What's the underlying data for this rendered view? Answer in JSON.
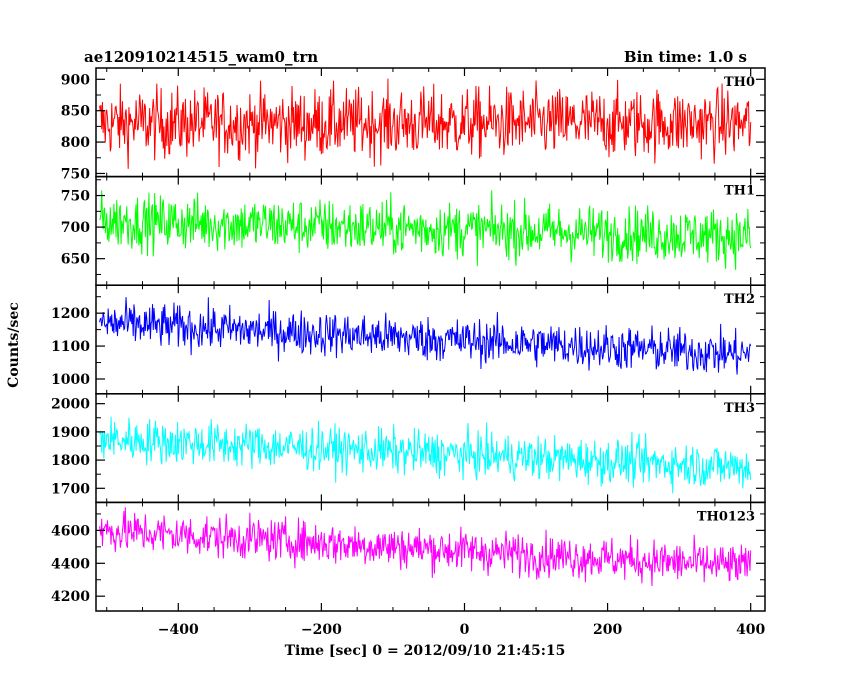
{
  "header": {
    "title": "ae120910214515_wam0_trn",
    "bin_time": "Bin time: 1.0 s"
  },
  "chart_data": {
    "type": "line",
    "xlabel": "Time [sec] 0 = 2012/09/10 21:45:15",
    "ylabel": "Counts/sec",
    "xlim": [
      -515,
      420
    ],
    "x_ticks": [
      -400,
      -200,
      0,
      200,
      400
    ],
    "x_tick_labels": [
      "−400",
      "−200",
      "0",
      "200",
      "400"
    ],
    "series_x_range": [
      -510,
      400
    ],
    "panels": [
      {
        "name": "TH0",
        "color": "#ff0000",
        "ylim": [
          745,
          918
        ],
        "y_ticks": [
          750,
          800,
          850,
          900
        ],
        "y_tick_labels": [
          "750",
          "800",
          "850",
          "900"
        ],
        "trend_start": 830,
        "trend_end": 830,
        "noise": 28
      },
      {
        "name": "TH1",
        "color": "#00ff00",
        "ylim": [
          608,
          780
        ],
        "y_ticks": [
          650,
          700,
          750
        ],
        "y_tick_labels": [
          "650",
          "700",
          "750"
        ],
        "trend_start": 710,
        "trend_end": 685,
        "noise": 22
      },
      {
        "name": "TH2",
        "color": "#0000ff",
        "ylim": [
          955,
          1285
        ],
        "y_ticks": [
          1000,
          1100,
          1200
        ],
        "y_tick_labels": [
          "1000",
          "1100",
          "1200"
        ],
        "trend_start": 1170,
        "trend_end": 1075,
        "noise": 34
      },
      {
        "name": "TH3",
        "color": "#00ffff",
        "ylim": [
          1650,
          2035
        ],
        "y_ticks": [
          1700,
          1800,
          1900,
          2000
        ],
        "y_tick_labels": [
          "1700",
          "1800",
          "1900",
          "2000"
        ],
        "trend_start": 1875,
        "trend_end": 1775,
        "noise": 40
      },
      {
        "name": "TH0123",
        "color": "#ff00ff",
        "ylim": [
          4110,
          4770
        ],
        "y_ticks": [
          4200,
          4400,
          4600
        ],
        "y_tick_labels": [
          "4200",
          "4400",
          "4600"
        ],
        "trend_start": 4600,
        "trend_end": 4380,
        "noise": 65
      }
    ]
  }
}
